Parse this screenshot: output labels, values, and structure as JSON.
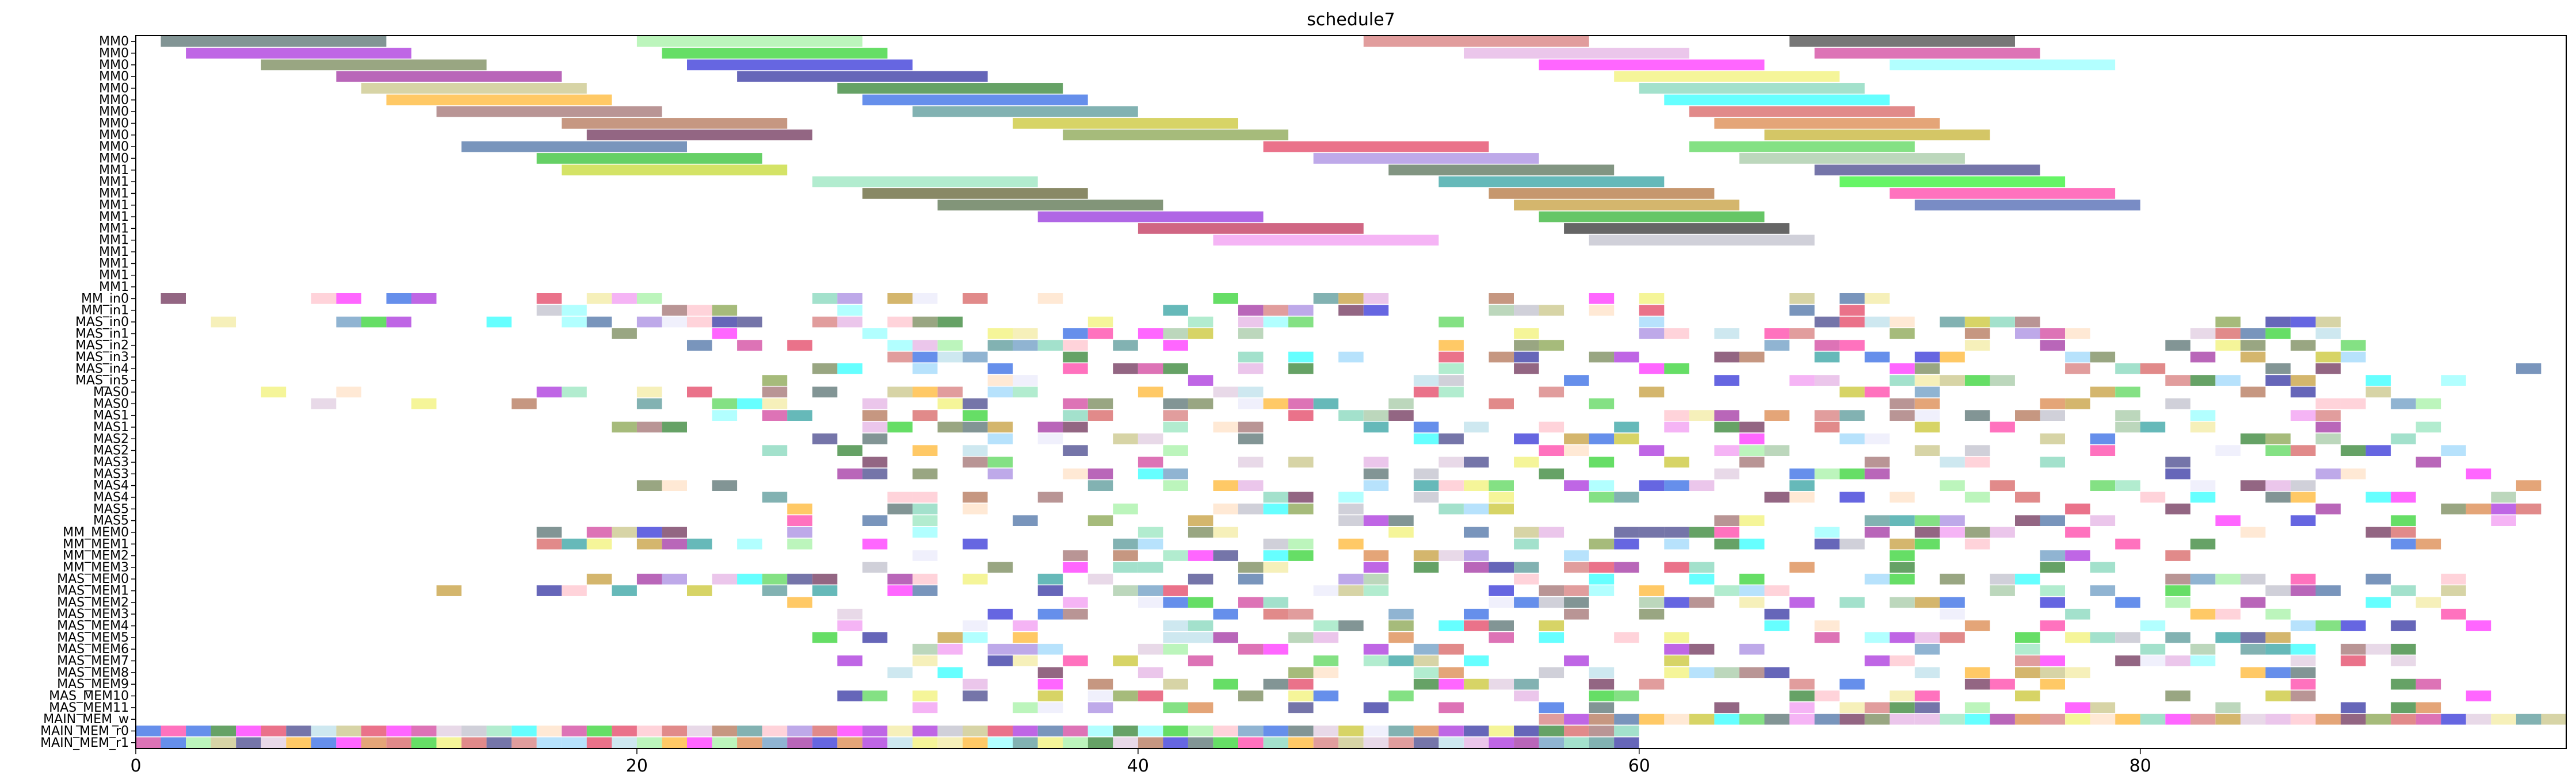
{
  "chart_data": {
    "type": "gantt",
    "title": "schedule7",
    "xlabel": "",
    "ylabel": "",
    "xlim": [
      0,
      97
    ],
    "x_ticks": [
      0,
      20,
      40,
      60,
      80
    ],
    "x_tick_labels": [
      "0",
      "20",
      "40",
      "60",
      "80"
    ],
    "grid": false,
    "legend": "none",
    "rows": [
      "MM0",
      "MM0",
      "MM0",
      "MM0",
      "MM0",
      "MM0",
      "MM0",
      "MM0",
      "MM0",
      "MM0",
      "MM0",
      "MM1",
      "MM1",
      "MM1",
      "MM1",
      "MM1",
      "MM1",
      "MM1",
      "MM1",
      "MM1",
      "MM1",
      "MM1",
      "MM_in0",
      "MM_in1",
      "MAS_in0",
      "MAS_in1",
      "MAS_in2",
      "MAS_in3",
      "MAS_in4",
      "MAS_in5",
      "MAS0",
      "MAS0",
      "MAS1",
      "MAS1",
      "MAS2",
      "MAS2",
      "MAS3",
      "MAS3",
      "MAS4",
      "MAS4",
      "MAS5",
      "MAS5",
      "MM_MEM0",
      "MM_MEM1",
      "MM_MEM2",
      "MM_MEM3",
      "MAS_MEM0",
      "MAS_MEM1",
      "MAS_MEM2",
      "MAS_MEM3",
      "MAS_MEM4",
      "MAS_MEM5",
      "MAS_MEM6",
      "MAS_MEM7",
      "MAS_MEM8",
      "MAS_MEM9",
      "MAS_MEM10",
      "MAS_MEM11",
      "MAIN_MEM_w",
      "MAIN_MEM_r0",
      "MAIN_MEM_r1"
    ],
    "long_tasks": [
      {
        "row": 0,
        "start": 1,
        "end": 10,
        "color": "#2f4f4f"
      },
      {
        "row": 0,
        "start": 20,
        "end": 29,
        "color": "#90ee90"
      },
      {
        "row": 0,
        "start": 49,
        "end": 58,
        "color": "#cd5c5c"
      },
      {
        "row": 0,
        "start": 66,
        "end": 75,
        "color": "#1c1c1c"
      },
      {
        "row": 1,
        "start": 2,
        "end": 11,
        "color": "#9400d3"
      },
      {
        "row": 1,
        "start": 21,
        "end": 30,
        "color": "#00c800"
      },
      {
        "row": 1,
        "start": 53,
        "end": 62,
        "color": "#dda0dd"
      },
      {
        "row": 1,
        "start": 67,
        "end": 76,
        "color": "#c71585"
      },
      {
        "row": 2,
        "start": 5,
        "end": 14,
        "color": "#556b2f"
      },
      {
        "row": 2,
        "start": 22,
        "end": 31,
        "color": "#0000cd"
      },
      {
        "row": 2,
        "start": 56,
        "end": 65,
        "color": "#ff00ff"
      },
      {
        "row": 2,
        "start": 70,
        "end": 79,
        "color": "#7fffff"
      },
      {
        "row": 3,
        "start": 8,
        "end": 17,
        "color": "#8b008b"
      },
      {
        "row": 3,
        "start": 24,
        "end": 34,
        "color": "#00008b"
      },
      {
        "row": 3,
        "start": 59,
        "end": 68,
        "color": "#eeee55"
      },
      {
        "row": 4,
        "start": 9,
        "end": 18,
        "color": "#bdb76b"
      },
      {
        "row": 4,
        "start": 28,
        "end": 37,
        "color": "#006400"
      },
      {
        "row": 4,
        "start": 60,
        "end": 69,
        "color": "#66cdaa"
      },
      {
        "row": 5,
        "start": 10,
        "end": 19,
        "color": "#ffa500"
      },
      {
        "row": 5,
        "start": 29,
        "end": 38,
        "color": "#0044dd"
      },
      {
        "row": 5,
        "start": 61,
        "end": 70,
        "color": "#00ffff"
      },
      {
        "row": 6,
        "start": 12,
        "end": 21,
        "color": "#8b4f4f"
      },
      {
        "row": 6,
        "start": 31,
        "end": 40,
        "color": "#2f7f7f"
      },
      {
        "row": 6,
        "start": 62,
        "end": 71,
        "color": "#cd3c3c"
      },
      {
        "row": 7,
        "start": 17,
        "end": 26,
        "color": "#a0522d"
      },
      {
        "row": 7,
        "start": 35,
        "end": 44,
        "color": "#bdb700"
      },
      {
        "row": 7,
        "start": 63,
        "end": 72,
        "color": "#d2691e"
      },
      {
        "row": 8,
        "start": 18,
        "end": 27,
        "color": "#4b0030"
      },
      {
        "row": 8,
        "start": 37,
        "end": 46,
        "color": "#6b8e23"
      },
      {
        "row": 8,
        "start": 65,
        "end": 74,
        "color": "#b8a000"
      },
      {
        "row": 9,
        "start": 13,
        "end": 22,
        "color": "#1f4f8f"
      },
      {
        "row": 9,
        "start": 45,
        "end": 54,
        "color": "#dc143c"
      },
      {
        "row": 9,
        "start": 62,
        "end": 71,
        "color": "#32cd32"
      },
      {
        "row": 10,
        "start": 16,
        "end": 25,
        "color": "#00b000"
      },
      {
        "row": 10,
        "start": 47,
        "end": 56,
        "color": "#9370db"
      },
      {
        "row": 10,
        "start": 64,
        "end": 73,
        "color": "#8fbc8f"
      },
      {
        "row": 11,
        "start": 17,
        "end": 26,
        "color": "#b8d000"
      },
      {
        "row": 11,
        "start": 50,
        "end": 59,
        "color": "#2f4f2f"
      },
      {
        "row": 11,
        "start": 67,
        "end": 76,
        "color": "#191970"
      },
      {
        "row": 12,
        "start": 27,
        "end": 36,
        "color": "#7fdfaf"
      },
      {
        "row": 12,
        "start": 52,
        "end": 61,
        "color": "#008b8b"
      },
      {
        "row": 12,
        "start": 68,
        "end": 77,
        "color": "#00ee00"
      },
      {
        "row": 13,
        "start": 29,
        "end": 38,
        "color": "#3b3b00"
      },
      {
        "row": 13,
        "start": 54,
        "end": 63,
        "color": "#a0520d"
      },
      {
        "row": 13,
        "start": 70,
        "end": 79,
        "color": "#ff1493"
      },
      {
        "row": 14,
        "start": 32,
        "end": 41,
        "color": "#2f4f1f"
      },
      {
        "row": 14,
        "start": 55,
        "end": 64,
        "color": "#b8860b"
      },
      {
        "row": 14,
        "start": 71,
        "end": 80,
        "color": "#1f3f9f"
      },
      {
        "row": 15,
        "start": 36,
        "end": 45,
        "color": "#7b00d3"
      },
      {
        "row": 15,
        "start": 56,
        "end": 65,
        "color": "#00a000"
      },
      {
        "row": 16,
        "start": 40,
        "end": 49,
        "color": "#b00030"
      },
      {
        "row": 16,
        "start": 57,
        "end": 66,
        "color": "#000000"
      },
      {
        "row": 17,
        "start": 43,
        "end": 52,
        "color": "#ee82ee"
      },
      {
        "row": 17,
        "start": 58,
        "end": 67,
        "color": "#b0b0c0"
      }
    ],
    "short_task_duration": 1,
    "short_task_fill_ratio": 0.35,
    "short_task_seed": 7,
    "short_rows": [
      {
        "row": 22,
        "from": 0,
        "to": 70
      },
      {
        "row": 23,
        "from": 14,
        "to": 70
      },
      {
        "row": 24,
        "from": 2,
        "to": 90
      },
      {
        "row": 25,
        "from": 12,
        "to": 90
      },
      {
        "row": 26,
        "from": 22,
        "to": 92
      },
      {
        "row": 27,
        "from": 24,
        "to": 92
      },
      {
        "row": 28,
        "from": 24,
        "to": 96
      },
      {
        "row": 29,
        "from": 25,
        "to": 96
      },
      {
        "row": 30,
        "from": 3,
        "to": 90
      },
      {
        "row": 31,
        "from": 4,
        "to": 92
      },
      {
        "row": 32,
        "from": 18,
        "to": 92
      },
      {
        "row": 33,
        "from": 19,
        "to": 92
      },
      {
        "row": 34,
        "from": 24,
        "to": 92
      },
      {
        "row": 35,
        "from": 25,
        "to": 94
      },
      {
        "row": 36,
        "from": 27,
        "to": 94
      },
      {
        "row": 37,
        "from": 28,
        "to": 96
      },
      {
        "row": 38,
        "from": 17,
        "to": 96
      },
      {
        "row": 39,
        "from": 25,
        "to": 96
      },
      {
        "row": 40,
        "from": 26,
        "to": 96
      },
      {
        "row": 41,
        "from": 26,
        "to": 96
      },
      {
        "row": 42,
        "from": 16,
        "to": 92
      },
      {
        "row": 43,
        "from": 16,
        "to": 92
      },
      {
        "row": 44,
        "from": 24,
        "to": 82
      },
      {
        "row": 45,
        "from": 24,
        "to": 82
      },
      {
        "row": 46,
        "from": 12,
        "to": 94
      },
      {
        "row": 47,
        "from": 12,
        "to": 94
      },
      {
        "row": 48,
        "from": 24,
        "to": 94
      },
      {
        "row": 49,
        "from": 26,
        "to": 94
      },
      {
        "row": 50,
        "from": 28,
        "to": 94
      },
      {
        "row": 51,
        "from": 25,
        "to": 92
      },
      {
        "row": 52,
        "from": 28,
        "to": 92
      },
      {
        "row": 53,
        "from": 28,
        "to": 92
      },
      {
        "row": 54,
        "from": 30,
        "to": 92
      },
      {
        "row": 55,
        "from": 32,
        "to": 92
      },
      {
        "row": 56,
        "from": 26,
        "to": 94
      },
      {
        "row": 57,
        "from": 28,
        "to": 92
      },
      {
        "row": 58,
        "from": 56,
        "to": 97
      },
      {
        "row": 59,
        "from": 0,
        "to": 60
      },
      {
        "row": 60,
        "from": 0,
        "to": 60
      }
    ],
    "palette": [
      "#2f4f4f",
      "#90ee90",
      "#cd5c5c",
      "#9400d3",
      "#00c800",
      "#dda0dd",
      "#c71585",
      "#556b2f",
      "#0000cd",
      "#ff00ff",
      "#7fffff",
      "#8b008b",
      "#00008b",
      "#eeee55",
      "#bdb76b",
      "#006400",
      "#66cdaa",
      "#ffa500",
      "#0044dd",
      "#00ffff",
      "#8b4f4f",
      "#2f7f7f",
      "#cd3c3c",
      "#a0522d",
      "#bdb700",
      "#d2691e",
      "#4b0030",
      "#6b8e23",
      "#1f4f8f",
      "#dc143c",
      "#32cd32",
      "#9370db",
      "#8fbc8f",
      "#191970",
      "#7fdfaf",
      "#008b8b",
      "#ff1493",
      "#b8860b",
      "#ee82ee",
      "#b0b0c0",
      "#ffdab9",
      "#e6e6fa",
      "#f0e68c",
      "#4682b4",
      "#87cefa",
      "#add8e6",
      "#d8bfd8",
      "#ffb6c1"
    ]
  }
}
